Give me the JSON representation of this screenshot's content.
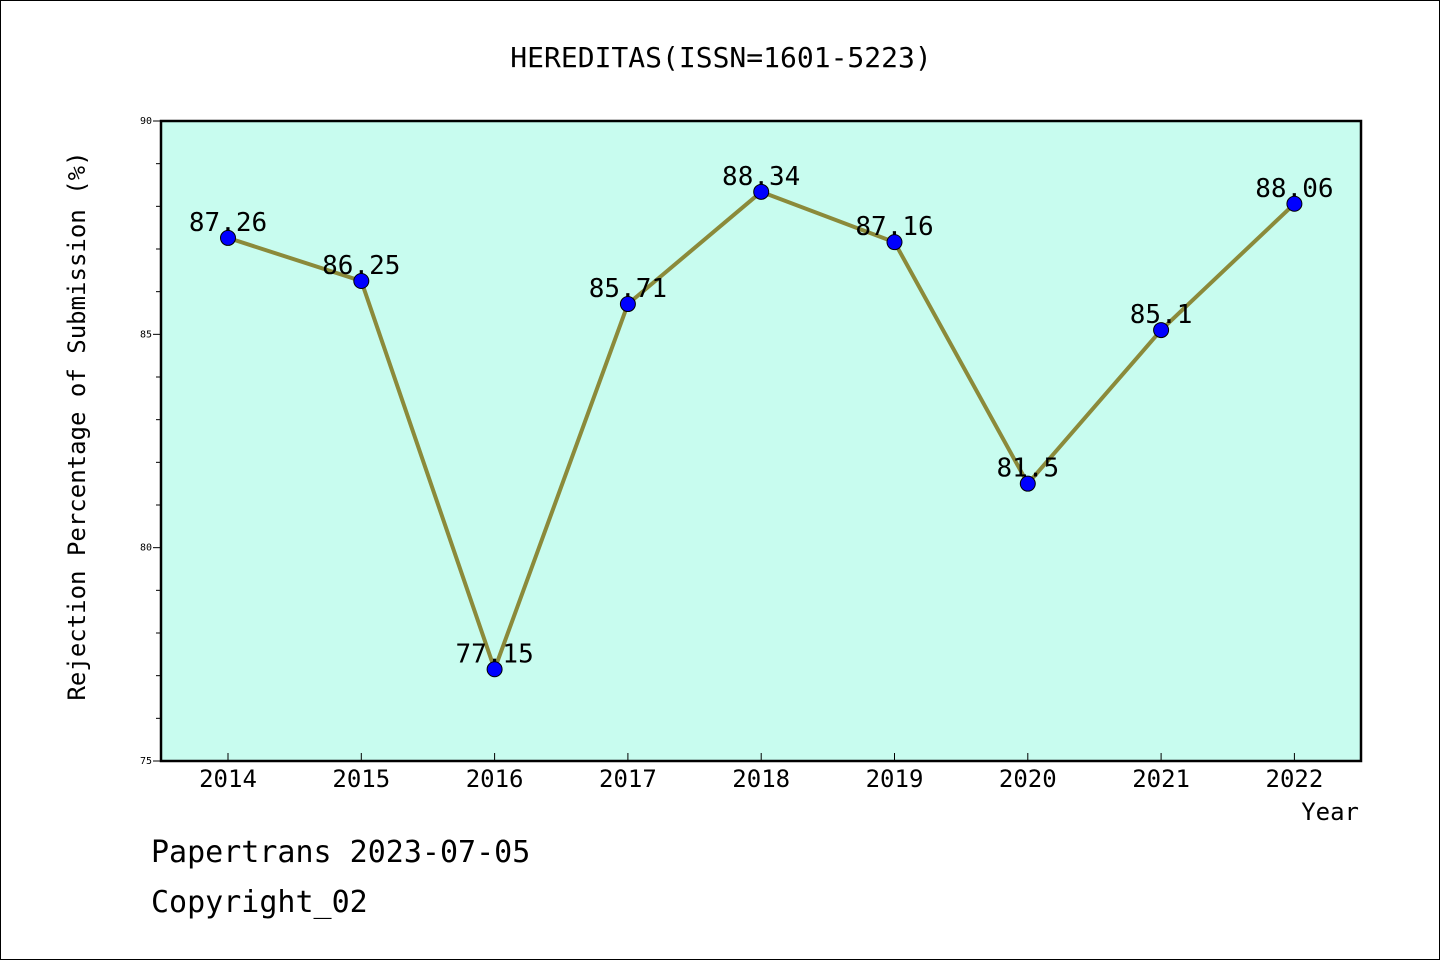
{
  "chart_data": {
    "type": "line",
    "title": "HEREDITAS(ISSN=1601-5223)",
    "xlabel": "Year",
    "ylabel": "Rejection Percentage of Submission (%)",
    "categories": [
      "2014",
      "2015",
      "2016",
      "2017",
      "2018",
      "2019",
      "2020",
      "2021",
      "2022"
    ],
    "series": [
      {
        "values": [
          87.26,
          86.25,
          77.15,
          85.71,
          88.34,
          87.16,
          81.5,
          85.1,
          88.06
        ],
        "data_labels": [
          "87.26",
          "86.25",
          "77.15",
          "85.71",
          "88.34",
          "87.16",
          "81.5",
          "85.1",
          "88.06"
        ],
        "line_color": "#8B8A3A",
        "marker_color": "#0000ff"
      }
    ],
    "ylim": [
      75,
      90
    ],
    "y_ticks": [
      75,
      80,
      85,
      90
    ],
    "y_tick_labels": [
      "75",
      "80",
      "85",
      "90"
    ],
    "plot_background": "#C8FCEF",
    "grid": false,
    "legend": "none"
  },
  "footer": {
    "line1": "Papertrans 2023-07-05",
    "line2": "Copyright_02"
  }
}
